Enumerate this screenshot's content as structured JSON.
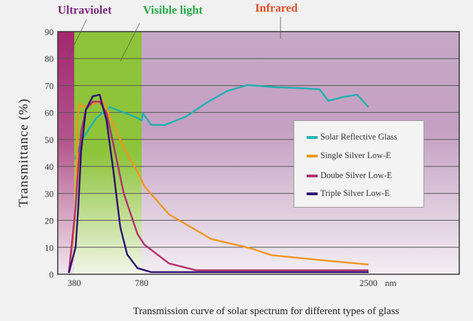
{
  "chart_data": {
    "type": "line",
    "title": "Transmission curve of solar spectrum for different types of glass",
    "xlabel": "",
    "x_unit": "nm",
    "ylabel": "Transmittance (%)",
    "ylim": [
      0,
      90
    ],
    "yticks": [
      0,
      10,
      20,
      30,
      40,
      50,
      60,
      70,
      80,
      90
    ],
    "xticks": [
      380,
      780,
      2500
    ],
    "x_scale": "non-uniform (piecewise)",
    "grid": "horizontal",
    "legend_position": "right",
    "bands": [
      {
        "label": "Ultraviolet",
        "from": null,
        "to": 380,
        "color": "#a3286e",
        "label_color": "#7b2a7e"
      },
      {
        "label": "Visible light",
        "from": 380,
        "to": 780,
        "color": "#8dc43a",
        "label_color": "#2aa84a"
      },
      {
        "label": "Infrared",
        "from": 780,
        "to": null,
        "color": "#c7a8c7",
        "label_color": "#e0502a"
      }
    ],
    "series": [
      {
        "name": "Solar Reflective Glass",
        "color": "#1fb0b0",
        "x": [
          385,
          421,
          511,
          592,
          674,
          755,
          780,
          790,
          853,
          957,
          1113,
          1269,
          1425,
          1581,
          1790,
          1998,
          2128,
          2196,
          2310,
          2414,
          2500
        ],
        "y": [
          42.6,
          49.5,
          58,
          62,
          60,
          58,
          57,
          59.7,
          55.4,
          55.4,
          58.4,
          63.5,
          67.9,
          70.2,
          69.4,
          69,
          68.6,
          64.3,
          65.8,
          66.6,
          62
        ]
      },
      {
        "name": "Single Silver Low-E",
        "color": "#f0961e",
        "x": [
          347,
          372,
          388,
          400,
          413,
          429,
          511,
          551,
          592,
          674,
          755,
          780,
          801,
          988,
          1306,
          1603,
          1764,
          2103,
          2500
        ],
        "y": [
          0.5,
          12.5,
          25,
          58,
          63.5,
          62,
          63.5,
          64.8,
          58.4,
          47,
          38,
          35,
          32.6,
          22.2,
          13.1,
          9.7,
          7.1,
          5.4,
          3.6
        ]
      },
      {
        "name": "Doube Silver Low-E",
        "color": "#b2306e",
        "x": [
          347,
          388,
          404,
          421,
          449,
          490,
          531,
          572,
          613,
          674,
          755,
          801,
          988,
          1192,
          1600,
          2000,
          2500
        ],
        "y": [
          0.5,
          25,
          40,
          53,
          61,
          64,
          64,
          59.7,
          48,
          30,
          15,
          11,
          4,
          1.5,
          1.5,
          1.5,
          1.5
        ]
      },
      {
        "name": "Triple Silver Low-E",
        "color": "#2a1070",
        "x": [
          347,
          388,
          404,
          421,
          449,
          490,
          531,
          572,
          613,
          653,
          694,
          755,
          853,
          1200,
          1800,
          2500
        ],
        "y": [
          0.5,
          10,
          25,
          45.7,
          61,
          66,
          66.6,
          57,
          38,
          17.6,
          7.4,
          2.3,
          0.8,
          0.8,
          0.8,
          0.8
        ]
      }
    ]
  }
}
